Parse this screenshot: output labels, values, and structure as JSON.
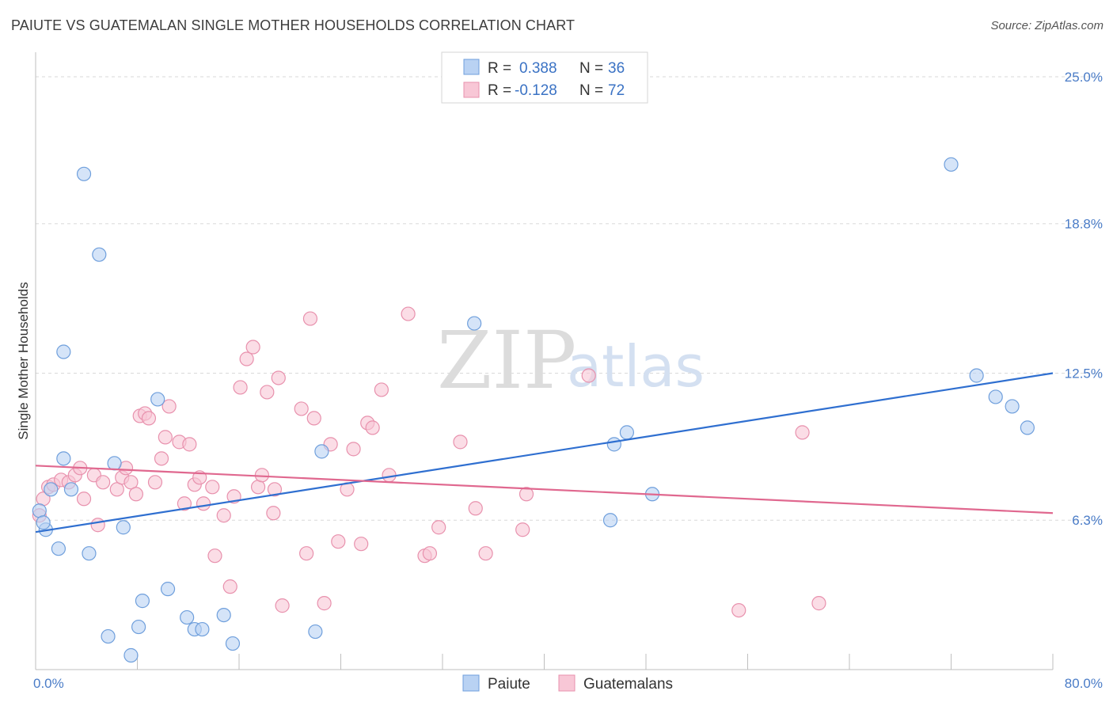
{
  "header": {
    "title": "PAIUTE VS GUATEMALAN SINGLE MOTHER HOUSEHOLDS CORRELATION CHART",
    "source": "Source: ZipAtlas.com"
  },
  "watermark": {
    "zip": "ZIP",
    "atlas": "atlas"
  },
  "colors": {
    "paiute_fill": "#b9d2f3",
    "paiute_stroke": "#6f9fdc",
    "paiute_line": "#2f6fd0",
    "guat_fill": "#f8c7d6",
    "guat_stroke": "#e891ad",
    "guat_line": "#e0688f",
    "grid": "#d9d9d9",
    "axis_label": "#4a7cc7"
  },
  "legend": {
    "rows": [
      {
        "r_label": "R =",
        "r_value": "0.388",
        "n_label": "N =",
        "n_value": "36"
      },
      {
        "r_label": "R =",
        "r_value": "-0.128",
        "n_label": "N =",
        "n_value": "72"
      }
    ]
  },
  "chart_data": {
    "type": "scatter",
    "title": "PAIUTE VS GUATEMALAN SINGLE MOTHER HOUSEHOLDS CORRELATION CHART",
    "ylabel": "Single Mother Households",
    "xlabel": "",
    "xlim": [
      0,
      80
    ],
    "ylim": [
      0,
      25.9
    ],
    "x_tick_labels": [
      "0.0%",
      "80.0%"
    ],
    "y_ticks": [
      6.3,
      12.5,
      18.8,
      25.0
    ],
    "y_tick_labels": [
      "6.3%",
      "12.5%",
      "18.8%",
      "25.0%"
    ],
    "grid": true,
    "legend_position": "top-center",
    "series": [
      {
        "name": "Paiute",
        "r": 0.388,
        "n": 36,
        "trend": {
          "x": [
            0,
            80
          ],
          "y": [
            5.8,
            12.5
          ]
        },
        "points": [
          [
            0.3,
            6.7
          ],
          [
            0.8,
            5.9
          ],
          [
            1.2,
            7.6
          ],
          [
            1.8,
            5.1
          ],
          [
            2.2,
            13.4
          ],
          [
            2.2,
            8.9
          ],
          [
            2.8,
            7.6
          ],
          [
            3.8,
            20.9
          ],
          [
            4.2,
            4.9
          ],
          [
            5.0,
            17.5
          ],
          [
            5.7,
            1.4
          ],
          [
            6.2,
            8.7
          ],
          [
            6.9,
            6.0
          ],
          [
            7.5,
            0.6
          ],
          [
            8.1,
            1.8
          ],
          [
            8.4,
            2.9
          ],
          [
            9.6,
            11.4
          ],
          [
            10.4,
            3.4
          ],
          [
            11.9,
            2.2
          ],
          [
            12.5,
            1.7
          ],
          [
            13.1,
            1.7
          ],
          [
            14.8,
            2.3
          ],
          [
            15.5,
            1.1
          ],
          [
            22.0,
            1.6
          ],
          [
            22.5,
            9.2
          ],
          [
            34.5,
            14.6
          ],
          [
            45.2,
            6.3
          ],
          [
            45.5,
            9.5
          ],
          [
            46.5,
            10.0
          ],
          [
            48.5,
            7.4
          ],
          [
            72.0,
            21.3
          ],
          [
            74.0,
            12.4
          ],
          [
            75.5,
            11.5
          ],
          [
            76.8,
            11.1
          ],
          [
            78.0,
            10.2
          ],
          [
            0.6,
            6.2
          ]
        ]
      },
      {
        "name": "Guatemalans",
        "r": -0.128,
        "n": 72,
        "trend": {
          "x": [
            0,
            80
          ],
          "y": [
            8.6,
            6.6
          ]
        },
        "points": [
          [
            0.3,
            6.5
          ],
          [
            0.6,
            7.2
          ],
          [
            1.0,
            7.7
          ],
          [
            1.4,
            7.8
          ],
          [
            2.0,
            8.0
          ],
          [
            2.6,
            7.9
          ],
          [
            3.1,
            8.2
          ],
          [
            3.5,
            8.5
          ],
          [
            3.8,
            7.2
          ],
          [
            4.6,
            8.2
          ],
          [
            4.9,
            6.1
          ],
          [
            5.3,
            7.9
          ],
          [
            6.4,
            7.6
          ],
          [
            6.8,
            8.1
          ],
          [
            7.1,
            8.5
          ],
          [
            7.5,
            7.9
          ],
          [
            7.9,
            7.4
          ],
          [
            8.2,
            10.7
          ],
          [
            8.6,
            10.8
          ],
          [
            8.9,
            10.6
          ],
          [
            9.4,
            7.9
          ],
          [
            9.9,
            8.9
          ],
          [
            10.2,
            9.8
          ],
          [
            10.5,
            11.1
          ],
          [
            11.3,
            9.6
          ],
          [
            11.7,
            7.0
          ],
          [
            12.1,
            9.5
          ],
          [
            12.5,
            7.8
          ],
          [
            12.9,
            8.1
          ],
          [
            13.2,
            7.0
          ],
          [
            13.9,
            7.7
          ],
          [
            14.1,
            4.8
          ],
          [
            14.8,
            6.5
          ],
          [
            15.3,
            3.5
          ],
          [
            15.6,
            7.3
          ],
          [
            16.1,
            11.9
          ],
          [
            16.6,
            13.1
          ],
          [
            17.1,
            13.6
          ],
          [
            17.5,
            7.7
          ],
          [
            17.8,
            8.2
          ],
          [
            18.2,
            11.7
          ],
          [
            18.7,
            6.6
          ],
          [
            18.8,
            7.6
          ],
          [
            19.1,
            12.3
          ],
          [
            19.4,
            2.7
          ],
          [
            20.9,
            11.0
          ],
          [
            21.3,
            4.9
          ],
          [
            21.6,
            14.8
          ],
          [
            21.9,
            10.6
          ],
          [
            22.7,
            2.8
          ],
          [
            23.2,
            9.5
          ],
          [
            23.8,
            5.4
          ],
          [
            24.5,
            7.6
          ],
          [
            25.0,
            9.3
          ],
          [
            25.6,
            5.3
          ],
          [
            26.1,
            10.4
          ],
          [
            26.5,
            10.2
          ],
          [
            27.2,
            11.8
          ],
          [
            27.8,
            8.2
          ],
          [
            29.3,
            15.0
          ],
          [
            30.6,
            4.8
          ],
          [
            31.0,
            4.9
          ],
          [
            31.7,
            6.0
          ],
          [
            33.4,
            9.6
          ],
          [
            34.6,
            6.8
          ],
          [
            35.4,
            4.9
          ],
          [
            38.3,
            5.9
          ],
          [
            38.6,
            7.4
          ],
          [
            43.5,
            12.4
          ],
          [
            55.3,
            2.5
          ],
          [
            60.3,
            10.0
          ],
          [
            61.6,
            2.8
          ]
        ]
      }
    ]
  },
  "bottom_legend": {
    "items": [
      "Paiute",
      "Guatemalans"
    ]
  }
}
